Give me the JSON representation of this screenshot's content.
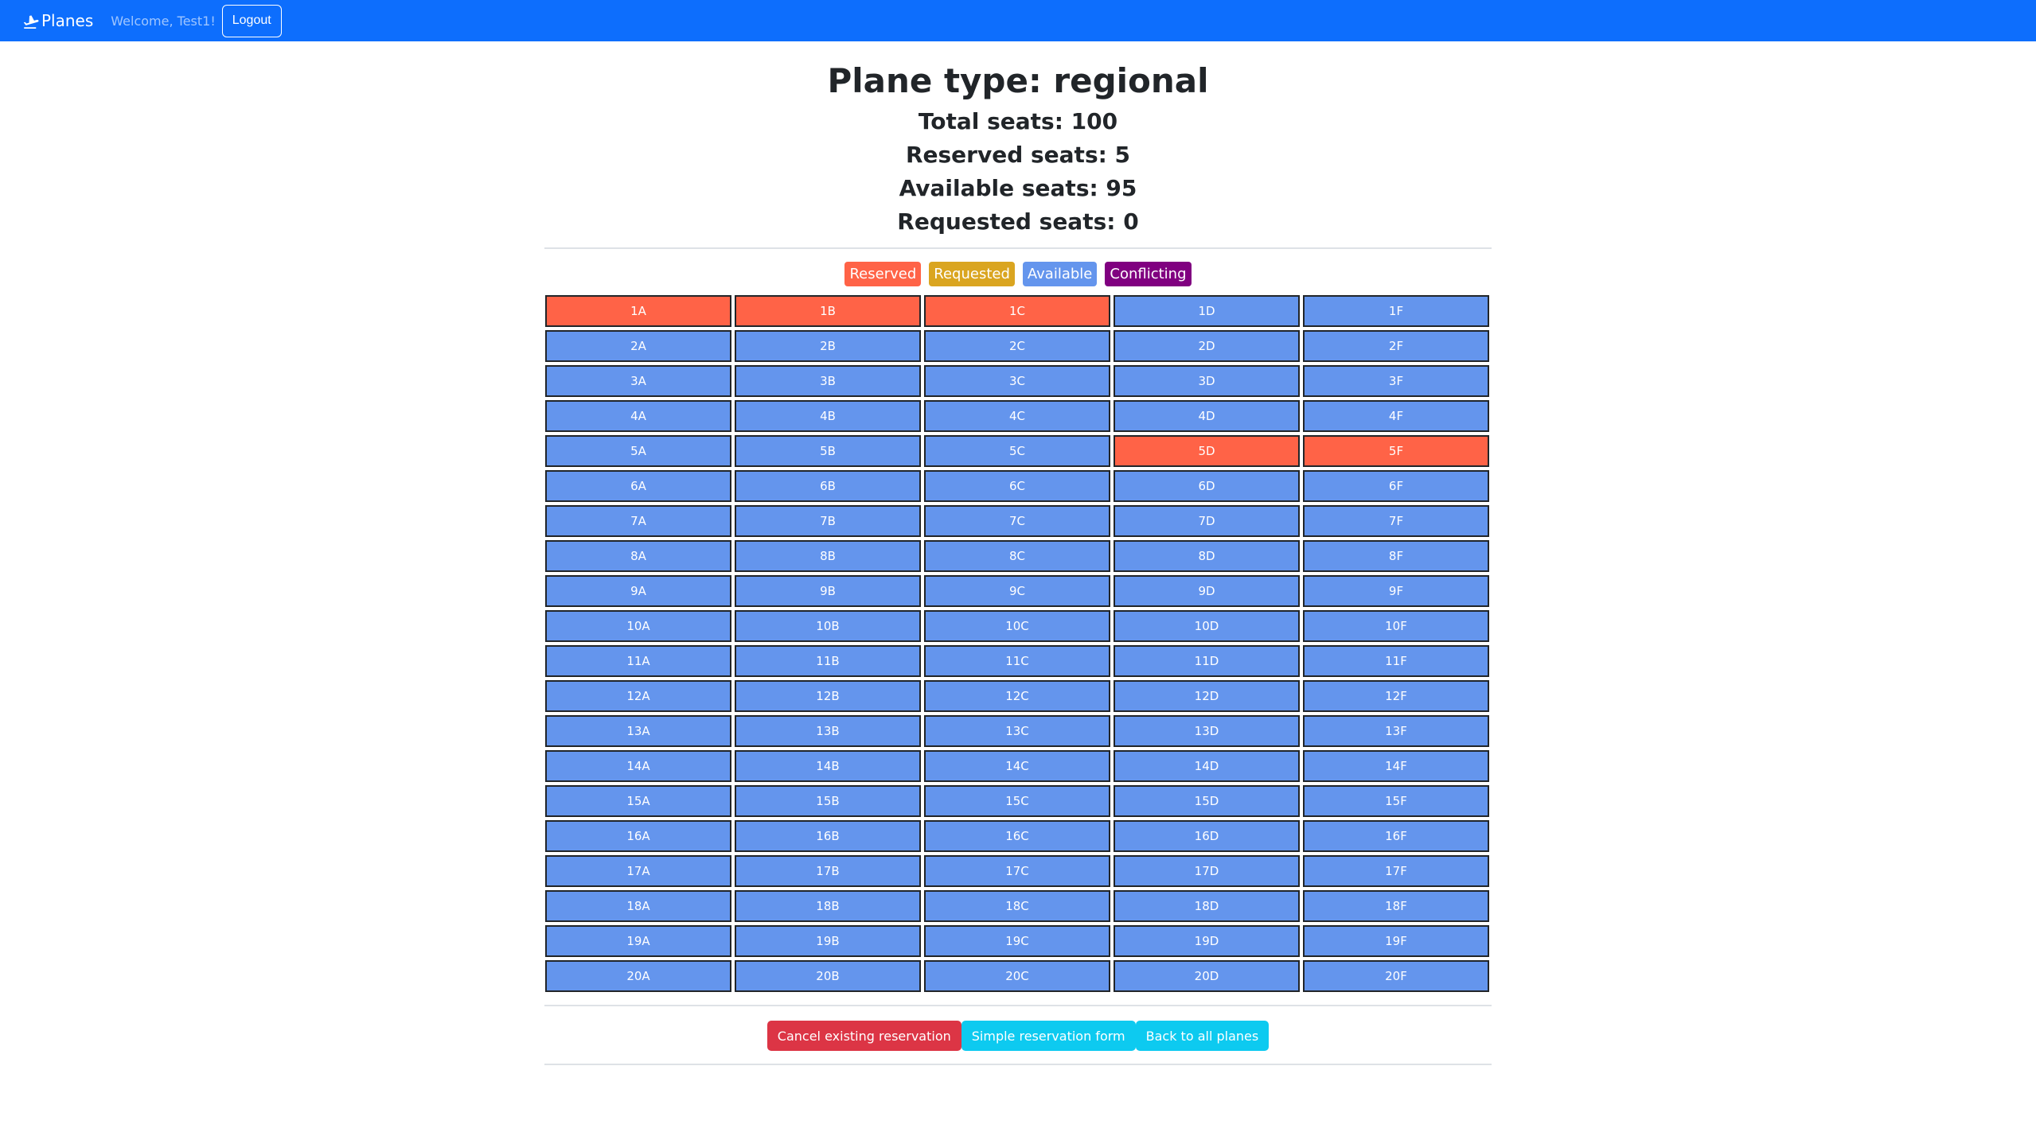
{
  "navbar": {
    "brand": "Planes",
    "welcome": "Welcome, Test1!",
    "logout_label": "Logout",
    "color": "#0d6efd"
  },
  "plane": {
    "title": "Plane type: regional",
    "total": "Total seats: 100",
    "reserved": "Reserved seats: 5",
    "available": "Available seats: 95",
    "requested": "Requested seats: 0"
  },
  "legend": [
    {
      "label": "Reserved",
      "color": "#ff6347"
    },
    {
      "label": "Requested",
      "color": "#daa520"
    },
    {
      "label": "Available",
      "color": "#6495ed"
    },
    {
      "label": "Conflicting",
      "color": "#800080"
    }
  ],
  "seats": {
    "rows": 20,
    "columns": [
      "A",
      "B",
      "C",
      "D",
      "F"
    ],
    "reserved": [
      "1A",
      "1B",
      "1C",
      "5D",
      "5F"
    ],
    "requested": [],
    "conflicting": []
  },
  "actions": [
    {
      "label": "Cancel existing reservation",
      "color": "#dc3545"
    },
    {
      "label": "Simple reservation form",
      "color": "#0dcaf0"
    },
    {
      "label": "Back to all planes",
      "color": "#0dcaf0"
    }
  ]
}
